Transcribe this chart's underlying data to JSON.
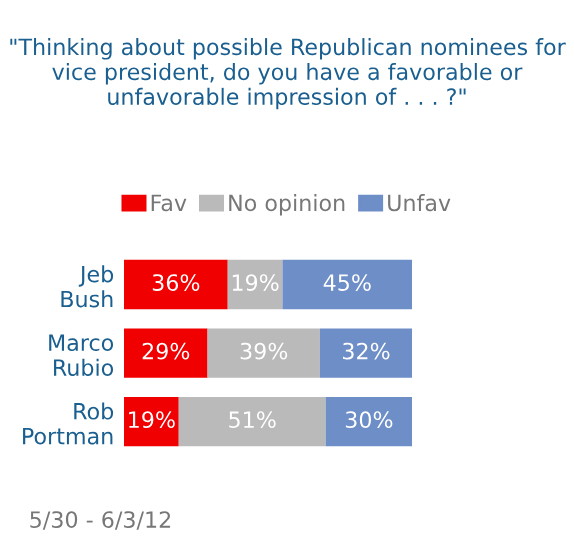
{
  "chart_data": {
    "type": "bar",
    "orientation": "horizontal",
    "stacked": true,
    "title": "\"Thinking about possible Republican nominees for vice president, do you have a favorable or unfavorable impression of . . . ?\"",
    "categories": [
      "Jeb Bush",
      "Marco Rubio",
      "Rob Portman"
    ],
    "series": [
      {
        "name": "Fav",
        "color": "#f00000",
        "values": [
          36,
          29,
          19
        ],
        "value_labels": [
          "36%",
          "29%",
          "19%"
        ]
      },
      {
        "name": "No opinion",
        "color": "#bababa",
        "values": [
          19,
          39,
          51
        ],
        "value_labels": [
          "19%",
          "39%",
          "51%"
        ]
      },
      {
        "name": "Unfav",
        "color": "#6e8ec8",
        "values": [
          45,
          32,
          30
        ],
        "value_labels": [
          "45%",
          "32%",
          "30%"
        ]
      }
    ],
    "legend": "top",
    "annotations": [
      "5/30 - 6/3/12"
    ]
  }
}
